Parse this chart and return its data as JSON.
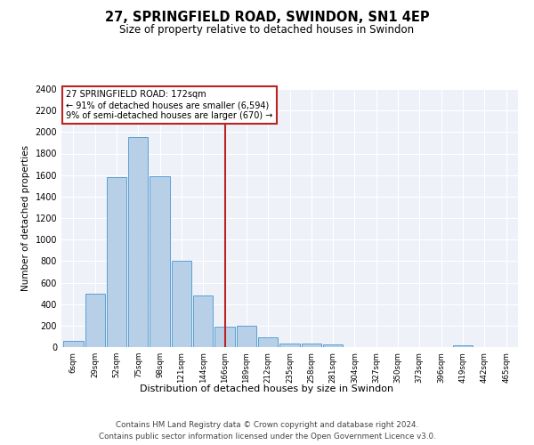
{
  "title": "27, SPRINGFIELD ROAD, SWINDON, SN1 4EP",
  "subtitle": "Size of property relative to detached houses in Swindon",
  "xlabel": "Distribution of detached houses by size in Swindon",
  "ylabel": "Number of detached properties",
  "bar_values": [
    60,
    500,
    1580,
    1950,
    1590,
    800,
    480,
    190,
    200,
    90,
    35,
    30,
    25,
    0,
    0,
    0,
    0,
    0,
    20,
    0,
    0
  ],
  "bar_labels": [
    "6sqm",
    "29sqm",
    "52sqm",
    "75sqm",
    "98sqm",
    "121sqm",
    "144sqm",
    "166sqm",
    "189sqm",
    "212sqm",
    "235sqm",
    "258sqm",
    "281sqm",
    "304sqm",
    "327sqm",
    "350sqm",
    "373sqm",
    "396sqm",
    "419sqm",
    "442sqm",
    "465sqm"
  ],
  "bar_color": "#b8cfe8",
  "bar_edge_color": "#5a9fd4",
  "ref_line_color": "#bb2222",
  "annotation_title": "27 SPRINGFIELD ROAD: 172sqm",
  "annotation_line1": "← 91% of detached houses are smaller (6,594)",
  "annotation_line2": "9% of semi-detached houses are larger (670) →",
  "annotation_box_color": "#bb2222",
  "ylim": [
    0,
    2400
  ],
  "yticks": [
    0,
    200,
    400,
    600,
    800,
    1000,
    1200,
    1400,
    1600,
    1800,
    2000,
    2200,
    2400
  ],
  "footer1": "Contains HM Land Registry data © Crown copyright and database right 2024.",
  "footer2": "Contains public sector information licensed under the Open Government Licence v3.0.",
  "bg_color": "#eef2f8",
  "grid_color": "#ffffff",
  "fig_bg_color": "#ffffff",
  "ref_bar_index": 7
}
